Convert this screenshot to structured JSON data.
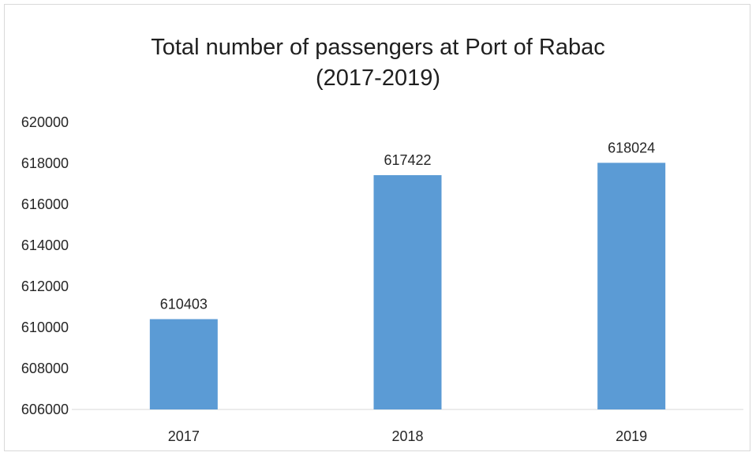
{
  "chart_data": {
    "type": "bar",
    "title_lines": [
      "Total number of passengers at Port of Rabac",
      "(2017-2019)"
    ],
    "categories": [
      "2017",
      "2018",
      "2019"
    ],
    "values": [
      610403,
      617422,
      618024
    ],
    "data_labels": [
      "610403",
      "617422",
      "618024"
    ],
    "ylim": [
      606000,
      620000
    ],
    "yticks": [
      "606000",
      "608000",
      "610000",
      "612000",
      "614000",
      "616000",
      "618000",
      "620000"
    ],
    "xlabel": "",
    "ylabel": "",
    "grid": false,
    "legend": "none",
    "bar_color": "#5b9bd5"
  }
}
